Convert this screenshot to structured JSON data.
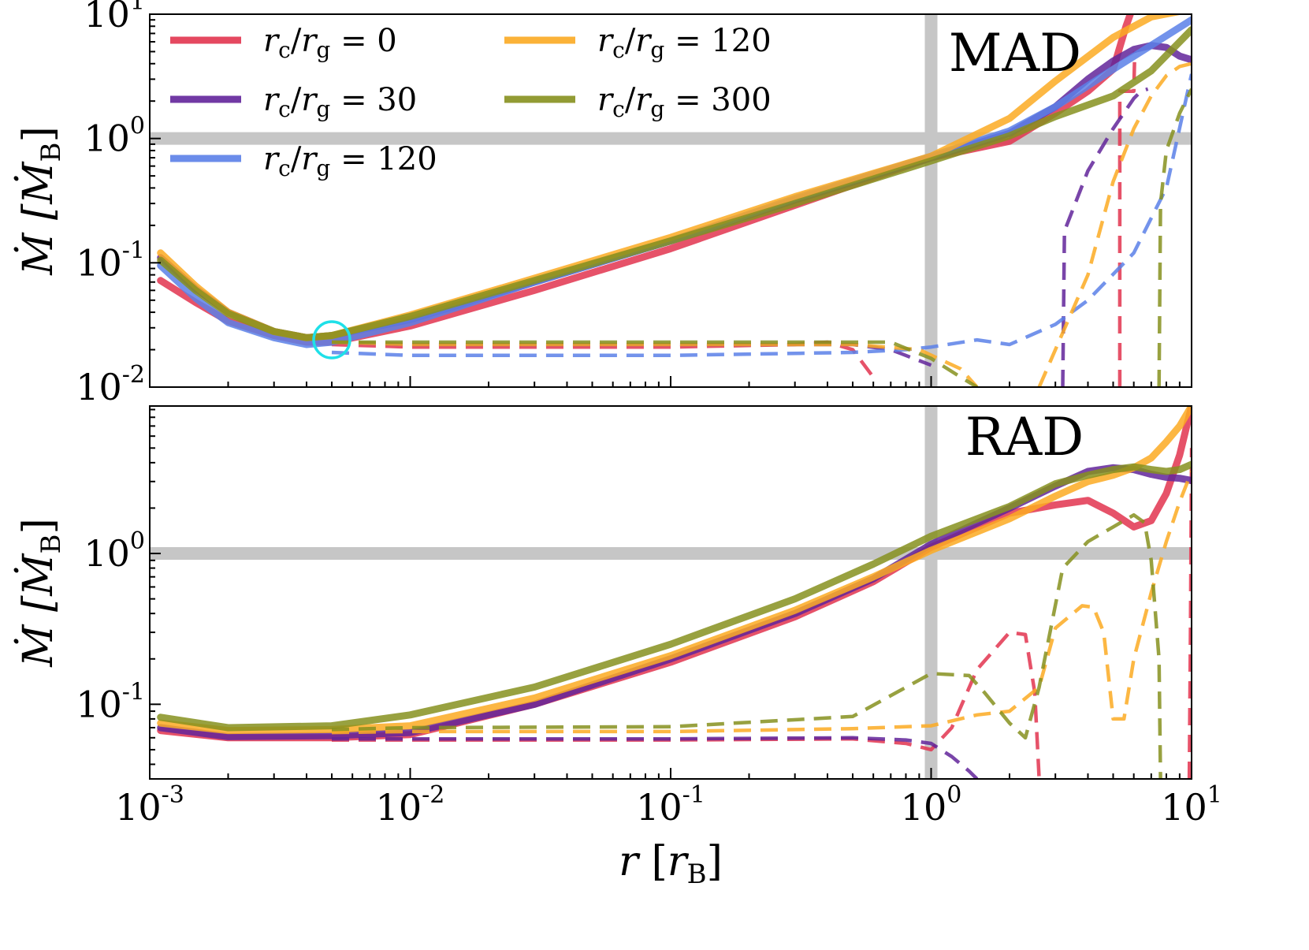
{
  "chart_data": [
    {
      "type": "line",
      "panel_label": "MAD",
      "x_axis": {
        "scale": "log",
        "lim": [
          0.001,
          10
        ],
        "ticks": [
          "10^-3",
          "10^-2",
          "10^-1",
          "10^0",
          "10^1"
        ]
      },
      "y_axis": {
        "label": "Ṁ [Ṁ_B]",
        "scale": "log",
        "lim": [
          0.01,
          10
        ],
        "ticks": [
          {
            "base": "10",
            "exp": "1"
          },
          {
            "base": "10",
            "exp": "0"
          },
          {
            "base": "10",
            "exp": "-1"
          },
          {
            "base": "10",
            "exp": "-2"
          }
        ]
      },
      "reference_lines": {
        "x": 1,
        "y": 1
      },
      "marker": {
        "type": "circle",
        "color": "#1fe0e8",
        "x": 0.005,
        "y": 0.024
      },
      "legend": {
        "placement": "top-left",
        "columns": 2,
        "entries": [
          {
            "label": "r_c/r_g = 0",
            "color": "#e2344f"
          },
          {
            "label": "r_c/r_g = 30",
            "color": "#62249a"
          },
          {
            "label": "r_c/r_g = 120",
            "color": "#5b80e8"
          },
          {
            "label": "r_c/r_g = 120",
            "color": "#fbaa22"
          },
          {
            "label": "r_c/r_g = 300",
            "color": "#86901e"
          }
        ]
      },
      "series": [
        {
          "name": "r_c/r_g = 0",
          "style": "solid",
          "color": "#e2344f",
          "x": [
            0.0011,
            0.0015,
            0.002,
            0.003,
            0.004,
            0.005,
            0.01,
            0.03,
            0.1,
            0.3,
            1,
            2,
            3,
            4,
            5,
            5.6,
            6
          ],
          "y": [
            0.072,
            0.048,
            0.034,
            0.026,
            0.023,
            0.023,
            0.031,
            0.06,
            0.13,
            0.29,
            0.7,
            0.95,
            1.6,
            2.4,
            3.6,
            8,
            12
          ]
        },
        {
          "name": "r_c/r_g = 0",
          "style": "dashed",
          "color": "#e2344f",
          "x": [
            0.005,
            0.01,
            0.1,
            0.3,
            0.4,
            0.5,
            0.6
          ],
          "y": [
            0.022,
            0.021,
            0.021,
            0.022,
            0.023,
            0.02,
            0.012
          ]
        },
        {
          "name": "r_c/r_g = 0",
          "style": "dashed",
          "color": "#e2344f",
          "x": [
            5.3,
            5.3,
            6,
            6.05
          ],
          "y": [
            0.01,
            2.4,
            2.4,
            5
          ]
        },
        {
          "name": "r_c/r_g = 30",
          "style": "solid",
          "color": "#62249a",
          "x": [
            0.0011,
            0.0015,
            0.002,
            0.003,
            0.004,
            0.005,
            0.01,
            0.03,
            0.1,
            0.3,
            1,
            2,
            3,
            4,
            5,
            6,
            7,
            8,
            9,
            10
          ],
          "y": [
            0.11,
            0.062,
            0.04,
            0.028,
            0.025,
            0.026,
            0.035,
            0.07,
            0.15,
            0.32,
            0.7,
            1.1,
            1.8,
            3,
            4.2,
            5.2,
            5.6,
            5.4,
            4.6,
            4.3
          ]
        },
        {
          "name": "r_c/r_g = 30",
          "style": "dashed",
          "color": "#62249a",
          "x": [
            0.005,
            0.01,
            0.1,
            0.5,
            0.7,
            1.0
          ],
          "y": [
            0.023,
            0.022,
            0.022,
            0.022,
            0.02,
            0.015
          ]
        },
        {
          "name": "r_c/r_g = 30",
          "style": "dashed",
          "color": "#62249a",
          "x": [
            3.2,
            3.25,
            4,
            5,
            6,
            6.4,
            6.8
          ],
          "y": [
            0.01,
            0.18,
            0.55,
            1.2,
            2.1,
            2.4,
            2.5
          ]
        },
        {
          "name": "r_c/r_g = 120",
          "style": "solid",
          "color": "#5b80e8",
          "x": [
            0.0011,
            0.0015,
            0.002,
            0.003,
            0.004,
            0.005,
            0.01,
            0.03,
            0.1,
            0.3,
            1,
            2,
            3,
            5,
            10
          ],
          "y": [
            0.095,
            0.052,
            0.033,
            0.025,
            0.022,
            0.023,
            0.033,
            0.07,
            0.15,
            0.33,
            0.72,
            1.15,
            1.8,
            3.6,
            9
          ]
        },
        {
          "name": "r_c/r_g = 120",
          "style": "dashed",
          "color": "#5b80e8",
          "x": [
            0.005,
            0.01,
            0.1,
            0.5,
            0.8,
            1,
            1.5,
            2,
            3,
            4,
            6,
            8,
            10
          ],
          "y": [
            0.019,
            0.018,
            0.018,
            0.019,
            0.02,
            0.021,
            0.024,
            0.022,
            0.032,
            0.05,
            0.12,
            0.4,
            3.3
          ]
        },
        {
          "name": "r_c/r_g = 120",
          "style": "solid",
          "color": "#fbaa22",
          "x": [
            0.0011,
            0.0015,
            0.002,
            0.003,
            0.004,
            0.005,
            0.01,
            0.03,
            0.1,
            0.3,
            1,
            2,
            3,
            5,
            7,
            10
          ],
          "y": [
            0.12,
            0.065,
            0.04,
            0.028,
            0.025,
            0.026,
            0.038,
            0.075,
            0.16,
            0.34,
            0.72,
            1.45,
            2.9,
            6.5,
            9.5,
            11
          ]
        },
        {
          "name": "r_c/r_g = 120",
          "style": "dashed",
          "color": "#fbaa22",
          "x": [
            0.005,
            0.01,
            0.1,
            0.5,
            0.9,
            1.3,
            1.5
          ],
          "y": [
            0.023,
            0.022,
            0.022,
            0.022,
            0.02,
            0.014,
            0.01
          ]
        },
        {
          "name": "r_c/r_g = 120",
          "style": "dashed",
          "color": "#fbaa22",
          "x": [
            2.6,
            3,
            4,
            5,
            6,
            7,
            8,
            9,
            10
          ],
          "y": [
            0.01,
            0.02,
            0.08,
            0.45,
            1.2,
            2.2,
            3.2,
            3.8,
            4
          ]
        },
        {
          "name": "r_c/r_g = 300",
          "style": "solid",
          "color": "#86901e",
          "x": [
            0.0011,
            0.0015,
            0.002,
            0.003,
            0.004,
            0.005,
            0.01,
            0.03,
            0.1,
            0.3,
            1,
            2,
            3,
            5,
            7,
            10
          ],
          "y": [
            0.105,
            0.06,
            0.039,
            0.028,
            0.025,
            0.026,
            0.037,
            0.072,
            0.15,
            0.3,
            0.66,
            1.05,
            1.5,
            2.2,
            3.5,
            7.5
          ]
        },
        {
          "name": "r_c/r_g = 300",
          "style": "dashed",
          "color": "#86901e",
          "x": [
            0.005,
            0.01,
            0.1,
            0.5,
            0.7,
            1,
            1.3,
            1.5
          ],
          "y": [
            0.023,
            0.023,
            0.023,
            0.023,
            0.023,
            0.017,
            0.012,
            0.01
          ]
        },
        {
          "name": "r_c/r_g = 300",
          "style": "dashed",
          "color": "#86901e",
          "x": [
            7.5,
            7.6,
            8,
            9,
            10
          ],
          "y": [
            0.01,
            0.3,
            0.8,
            1.6,
            2.5
          ]
        }
      ]
    },
    {
      "type": "line",
      "panel_label": "RAD",
      "x_axis": {
        "label": "r [r_B]",
        "scale": "log",
        "lim": [
          0.001,
          10
        ],
        "ticks": [
          {
            "base": "10",
            "exp": "-3"
          },
          {
            "base": "10",
            "exp": "-2"
          },
          {
            "base": "10",
            "exp": "-1"
          },
          {
            "base": "10",
            "exp": "0"
          },
          {
            "base": "10",
            "exp": "1"
          }
        ]
      },
      "y_axis": {
        "label": "Ṁ [Ṁ_B]",
        "scale": "log",
        "lim": [
          0.032,
          9.5
        ],
        "ticks": [
          {
            "base": "10",
            "exp": "0"
          },
          {
            "base": "10",
            "exp": "-1"
          }
        ]
      },
      "reference_lines": {
        "x": 1,
        "y": 1
      },
      "series": [
        {
          "name": "r_c/r_g = 0",
          "style": "solid",
          "color": "#e2344f",
          "x": [
            0.0011,
            0.002,
            0.005,
            0.01,
            0.03,
            0.1,
            0.3,
            0.6,
            1,
            2,
            3,
            4,
            5,
            6,
            7,
            8,
            9,
            10
          ],
          "y": [
            0.067,
            0.06,
            0.06,
            0.063,
            0.1,
            0.19,
            0.38,
            0.65,
            1.1,
            1.85,
            2.1,
            2.25,
            1.85,
            1.5,
            1.65,
            2.5,
            4.5,
            9.5
          ]
        },
        {
          "name": "r_c/r_g = 0",
          "style": "dashed",
          "color": "#e2344f",
          "x": [
            0.005,
            0.01,
            0.1,
            0.5,
            0.8,
            1.0,
            1.2,
            1.5,
            2,
            2.3,
            2.5,
            2.6
          ],
          "y": [
            0.058,
            0.058,
            0.058,
            0.059,
            0.055,
            0.05,
            0.07,
            0.17,
            0.3,
            0.29,
            0.12,
            0.032
          ]
        },
        {
          "name": "r_c/r_g = 0",
          "style": "dashed",
          "color": "#e2344f",
          "x": [
            9.8,
            9.9,
            10
          ],
          "y": [
            0.032,
            0.3,
            5
          ]
        },
        {
          "name": "r_c/r_g = 30",
          "style": "solid",
          "color": "#62249a",
          "x": [
            0.0011,
            0.002,
            0.005,
            0.01,
            0.03,
            0.1,
            0.3,
            0.6,
            1,
            2,
            3,
            4,
            5,
            6,
            7,
            8,
            9,
            10
          ],
          "y": [
            0.07,
            0.061,
            0.062,
            0.065,
            0.1,
            0.2,
            0.4,
            0.68,
            1.15,
            2.0,
            2.8,
            3.5,
            3.7,
            3.6,
            3.35,
            3.2,
            3.15,
            3.05
          ]
        },
        {
          "name": "r_c/r_g = 30",
          "style": "dashed",
          "color": "#62249a",
          "x": [
            0.005,
            0.01,
            0.1,
            0.5,
            0.8,
            1.0,
            1.2,
            1.4,
            1.5
          ],
          "y": [
            0.059,
            0.059,
            0.059,
            0.06,
            0.058,
            0.055,
            0.045,
            0.036,
            0.032
          ]
        },
        {
          "name": "r_c/r_g = 120",
          "style": "solid",
          "color": "#fbaa22",
          "x": [
            0.0011,
            0.002,
            0.005,
            0.01,
            0.03,
            0.1,
            0.3,
            0.6,
            1,
            2,
            3,
            4,
            5,
            6,
            7,
            8,
            9,
            10
          ],
          "y": [
            0.075,
            0.067,
            0.068,
            0.072,
            0.11,
            0.21,
            0.42,
            0.7,
            1.05,
            1.7,
            2.4,
            3.0,
            3.3,
            3.7,
            4.3,
            5.5,
            7,
            9.5
          ]
        },
        {
          "name": "r_c/r_g = 120",
          "style": "dashed",
          "color": "#fbaa22",
          "x": [
            0.005,
            0.01,
            0.1,
            0.5,
            1,
            1.5,
            2,
            2.6,
            3,
            3.8,
            4.2,
            4.6,
            5,
            5.5,
            6,
            7,
            8,
            9,
            10
          ],
          "y": [
            0.065,
            0.066,
            0.066,
            0.069,
            0.072,
            0.085,
            0.09,
            0.13,
            0.32,
            0.45,
            0.44,
            0.3,
            0.08,
            0.08,
            0.2,
            0.55,
            1.2,
            2.2,
            3.5
          ]
        },
        {
          "name": "r_c/r_g = 300",
          "style": "solid",
          "color": "#86901e",
          "x": [
            0.0011,
            0.002,
            0.005,
            0.01,
            0.03,
            0.1,
            0.3,
            0.6,
            1,
            2,
            3,
            4,
            5,
            6,
            7,
            8,
            9,
            10
          ],
          "y": [
            0.082,
            0.07,
            0.072,
            0.085,
            0.13,
            0.25,
            0.5,
            0.85,
            1.3,
            2.05,
            2.9,
            3.3,
            3.6,
            3.75,
            3.6,
            3.5,
            3.6,
            3.9
          ]
        },
        {
          "name": "r_c/r_g = 300",
          "style": "dashed",
          "color": "#86901e",
          "x": [
            0.005,
            0.01,
            0.1,
            0.5,
            1,
            1.4,
            1.6,
            2,
            2.3,
            2.6,
            3.2,
            4,
            5,
            6,
            6.6,
            7,
            7.5,
            7.6
          ],
          "y": [
            0.068,
            0.07,
            0.071,
            0.083,
            0.16,
            0.155,
            0.12,
            0.075,
            0.06,
            0.13,
            0.8,
            1.2,
            1.5,
            1.8,
            1.6,
            0.9,
            0.2,
            0.032
          ]
        }
      ]
    }
  ],
  "axis_text": {
    "y_label": "Ṁ [Ṁ",
    "y_label_sub": "B",
    "y_label_close": "]",
    "x_label_r": "r",
    "x_label_bracket_open": "[",
    "x_label_rb": "r",
    "x_label_sub": "B",
    "x_label_bracket_close": "]"
  }
}
